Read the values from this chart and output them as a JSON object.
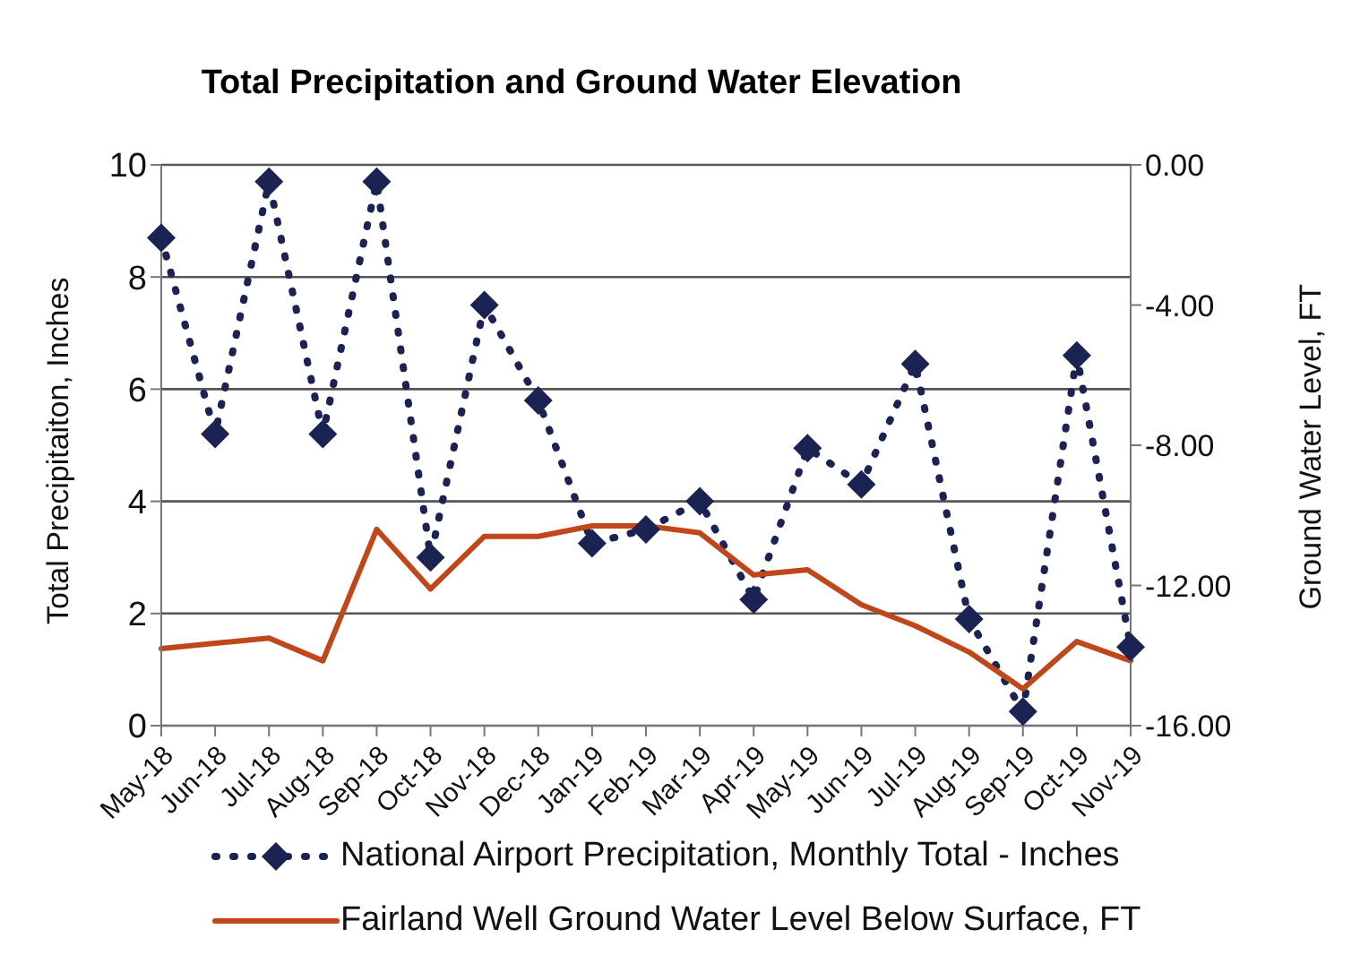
{
  "chart_data": {
    "type": "line",
    "title": "Total Precipitation and Ground Water Elevation",
    "ylabel": "Total Precipitaiton, Inches",
    "y2label": "Ground Water Level, FT",
    "categories": [
      "May-18",
      "Jun-18",
      "Jul-18",
      "Aug-18",
      "Sep-18",
      "Oct-18",
      "Nov-18",
      "Dec-18",
      "Jan-19",
      "Feb-19",
      "Mar-19",
      "Apr-19",
      "May-19",
      "Jun-19",
      "Jul-19",
      "Aug-19",
      "Sep-19",
      "Oct-19",
      "Nov-19"
    ],
    "series": [
      {
        "name": "National Airport Precipitation, Monthly Total - Inches",
        "color": "#1a2352",
        "marker": "diamond",
        "line_style": "dotted",
        "values": [
          8.7,
          5.2,
          9.7,
          5.2,
          9.7,
          3.0,
          7.5,
          5.8,
          3.25,
          3.5,
          4.0,
          2.25,
          4.95,
          4.3,
          6.45,
          1.9,
          0.25,
          6.6,
          1.4
        ]
      },
      {
        "name": "Fairland Well Ground Water Level Below Surface, FT",
        "color": "#c0461b",
        "marker": "none",
        "line_style": "solid",
        "axis": "y2",
        "values": [
          -13.8,
          -13.65,
          -13.5,
          -14.15,
          -10.4,
          -12.1,
          -10.6,
          -10.6,
          -10.3,
          -10.3,
          -10.5,
          -11.7,
          -11.55,
          -12.55,
          -13.15,
          -13.9,
          -14.95,
          -13.6,
          -14.15
        ]
      }
    ],
    "ylim": [
      0,
      10
    ],
    "yticks": [
      0,
      2,
      4,
      6,
      8,
      10
    ],
    "y2lim": [
      -16,
      0
    ],
    "y2ticks": [
      {
        "value": -16,
        "label": "-16.00"
      },
      {
        "value": -12,
        "label": "-12.00"
      },
      {
        "value": -8,
        "label": "-8.00"
      },
      {
        "value": -4,
        "label": "-4.00"
      },
      {
        "value": 0,
        "label": "0.00"
      }
    ],
    "grid": "y",
    "legend": "bottom"
  }
}
